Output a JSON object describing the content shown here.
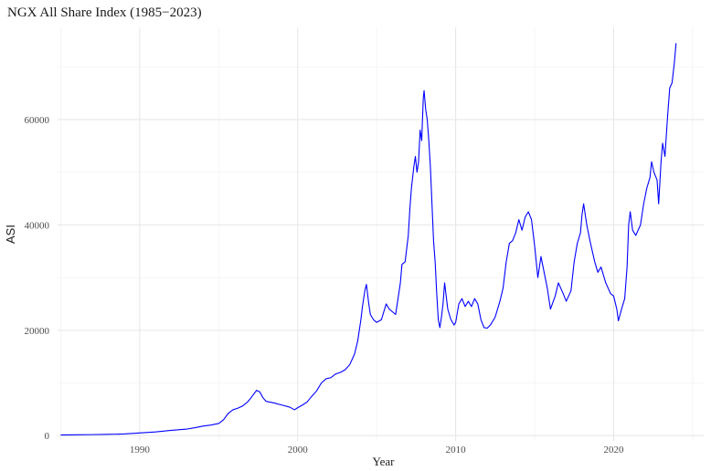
{
  "chart_data": {
    "type": "line",
    "title": "NGX All Share Index (1985−2023)",
    "xlabel": "Year",
    "ylabel": "ASI",
    "xlim": [
      1984.8,
      2025.7
    ],
    "ylim": [
      -1000,
      77500
    ],
    "x_ticks": [
      1990,
      2000,
      2010,
      2020
    ],
    "x_tick_labels": [
      "1990",
      "2000",
      "2010",
      "2020"
    ],
    "y_ticks": [
      0,
      20000,
      40000,
      60000
    ],
    "y_tick_labels": [
      "0",
      "20000",
      "40000",
      "60000"
    ],
    "grid": true,
    "legend": "none",
    "series": [
      {
        "color": "#0000ff",
        "points": [
          [
            1985.0,
            120
          ],
          [
            1986.0,
            160
          ],
          [
            1987.0,
            190
          ],
          [
            1988.0,
            240
          ],
          [
            1989.0,
            310
          ],
          [
            1990.0,
            500
          ],
          [
            1991.0,
            700
          ],
          [
            1992.0,
            1000
          ],
          [
            1993.0,
            1250
          ],
          [
            1993.5,
            1500
          ],
          [
            1994.0,
            1800
          ],
          [
            1994.5,
            2000
          ],
          [
            1995.0,
            2300
          ],
          [
            1995.3,
            3000
          ],
          [
            1995.6,
            4200
          ],
          [
            1995.9,
            4900
          ],
          [
            1996.2,
            5200
          ],
          [
            1996.5,
            5600
          ],
          [
            1996.8,
            6300
          ],
          [
            1997.0,
            7000
          ],
          [
            1997.2,
            7800
          ],
          [
            1997.4,
            8600
          ],
          [
            1997.6,
            8300
          ],
          [
            1997.8,
            7200
          ],
          [
            1998.0,
            6500
          ],
          [
            1998.5,
            6200
          ],
          [
            1999.0,
            5800
          ],
          [
            1999.5,
            5400
          ],
          [
            1999.8,
            4900
          ],
          [
            2000.0,
            5300
          ],
          [
            2000.3,
            5800
          ],
          [
            2000.6,
            6400
          ],
          [
            2000.9,
            7500
          ],
          [
            2001.2,
            8500
          ],
          [
            2001.5,
            10000
          ],
          [
            2001.8,
            10800
          ],
          [
            2002.1,
            11000
          ],
          [
            2002.4,
            11700
          ],
          [
            2002.7,
            12000
          ],
          [
            2003.0,
            12500
          ],
          [
            2003.3,
            13500
          ],
          [
            2003.6,
            15500
          ],
          [
            2003.8,
            18000
          ],
          [
            2004.0,
            22000
          ],
          [
            2004.1,
            24500
          ],
          [
            2004.25,
            27500
          ],
          [
            2004.35,
            28700
          ],
          [
            2004.5,
            25000
          ],
          [
            2004.6,
            23000
          ],
          [
            2004.8,
            22000
          ],
          [
            2005.0,
            21500
          ],
          [
            2005.3,
            22000
          ],
          [
            2005.6,
            25000
          ],
          [
            2005.8,
            24000
          ],
          [
            2006.0,
            23500
          ],
          [
            2006.2,
            23000
          ],
          [
            2006.5,
            29000
          ],
          [
            2006.6,
            32500
          ],
          [
            2006.8,
            33000
          ],
          [
            2007.0,
            38000
          ],
          [
            2007.1,
            43000
          ],
          [
            2007.2,
            47000
          ],
          [
            2007.35,
            51000
          ],
          [
            2007.45,
            53000
          ],
          [
            2007.55,
            50000
          ],
          [
            2007.65,
            52000
          ],
          [
            2007.75,
            58000
          ],
          [
            2007.85,
            56000
          ],
          [
            2007.95,
            64000
          ],
          [
            2008.0,
            65500
          ],
          [
            2008.1,
            62000
          ],
          [
            2008.2,
            60000
          ],
          [
            2008.3,
            56000
          ],
          [
            2008.4,
            51000
          ],
          [
            2008.5,
            44000
          ],
          [
            2008.6,
            37000
          ],
          [
            2008.7,
            33000
          ],
          [
            2008.8,
            27000
          ],
          [
            2008.9,
            22000
          ],
          [
            2009.0,
            20500
          ],
          [
            2009.1,
            22500
          ],
          [
            2009.2,
            25000
          ],
          [
            2009.3,
            29000
          ],
          [
            2009.5,
            24000
          ],
          [
            2009.7,
            22000
          ],
          [
            2009.9,
            21000
          ],
          [
            2010.0,
            21500
          ],
          [
            2010.2,
            25000
          ],
          [
            2010.4,
            26000
          ],
          [
            2010.6,
            24500
          ],
          [
            2010.8,
            25500
          ],
          [
            2011.0,
            24500
          ],
          [
            2011.2,
            26000
          ],
          [
            2011.4,
            25000
          ],
          [
            2011.6,
            22000
          ],
          [
            2011.8,
            20500
          ],
          [
            2012.0,
            20400
          ],
          [
            2012.2,
            21000
          ],
          [
            2012.5,
            22500
          ],
          [
            2012.8,
            25500
          ],
          [
            2013.0,
            28000
          ],
          [
            2013.2,
            33000
          ],
          [
            2013.4,
            36500
          ],
          [
            2013.6,
            37000
          ],
          [
            2013.8,
            38500
          ],
          [
            2014.0,
            41000
          ],
          [
            2014.2,
            39000
          ],
          [
            2014.4,
            41500
          ],
          [
            2014.6,
            42500
          ],
          [
            2014.8,
            41000
          ],
          [
            2015.0,
            36000
          ],
          [
            2015.2,
            30000
          ],
          [
            2015.4,
            34000
          ],
          [
            2015.6,
            31000
          ],
          [
            2015.8,
            28000
          ],
          [
            2016.0,
            24000
          ],
          [
            2016.3,
            26500
          ],
          [
            2016.5,
            29000
          ],
          [
            2016.8,
            27000
          ],
          [
            2017.0,
            25500
          ],
          [
            2017.3,
            27500
          ],
          [
            2017.5,
            33000
          ],
          [
            2017.7,
            36500
          ],
          [
            2017.9,
            38500
          ],
          [
            2018.0,
            42000
          ],
          [
            2018.1,
            44000
          ],
          [
            2018.3,
            40000
          ],
          [
            2018.5,
            37000
          ],
          [
            2018.8,
            33000
          ],
          [
            2019.0,
            31000
          ],
          [
            2019.2,
            32000
          ],
          [
            2019.5,
            29000
          ],
          [
            2019.8,
            27000
          ],
          [
            2020.0,
            26500
          ],
          [
            2020.2,
            24000
          ],
          [
            2020.3,
            21800
          ],
          [
            2020.5,
            24000
          ],
          [
            2020.7,
            26000
          ],
          [
            2020.85,
            32000
          ],
          [
            2020.95,
            40000
          ],
          [
            2021.05,
            42500
          ],
          [
            2021.2,
            39000
          ],
          [
            2021.4,
            38000
          ],
          [
            2021.7,
            40000
          ],
          [
            2021.9,
            44000
          ],
          [
            2022.1,
            47000
          ],
          [
            2022.3,
            49000
          ],
          [
            2022.4,
            52000
          ],
          [
            2022.55,
            50000
          ],
          [
            2022.75,
            48500
          ],
          [
            2022.85,
            44000
          ],
          [
            2023.0,
            52000
          ],
          [
            2023.1,
            55500
          ],
          [
            2023.25,
            53000
          ],
          [
            2023.4,
            60000
          ],
          [
            2023.55,
            66000
          ],
          [
            2023.7,
            67000
          ],
          [
            2023.85,
            71000
          ],
          [
            2023.95,
            74500
          ]
        ]
      }
    ]
  }
}
